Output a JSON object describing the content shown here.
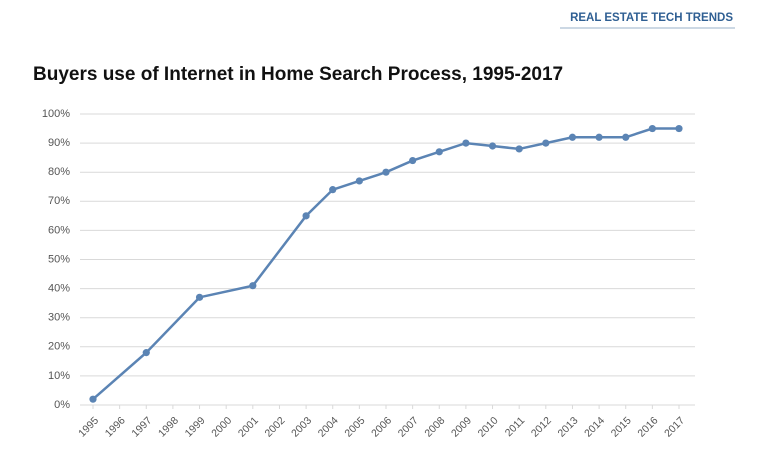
{
  "header": "REAL ESTATE TECH TRENDS",
  "chart_data": {
    "type": "line",
    "title": "Buyers use of Internet in Home Search Process, 1995-2017",
    "x": [
      1995,
      1997,
      1999,
      2001,
      2003,
      2004,
      2005,
      2006,
      2007,
      2008,
      2009,
      2010,
      2011,
      2012,
      2013,
      2014,
      2015,
      2016,
      2017
    ],
    "values": [
      2,
      18,
      37,
      41,
      65,
      74,
      77,
      80,
      84,
      87,
      90,
      89,
      88,
      90,
      92,
      92,
      92,
      95,
      95
    ],
    "color": "#5b84b4",
    "xlim": [
      1995,
      2017
    ],
    "xticks": [
      1995,
      1996,
      1997,
      1998,
      1999,
      2000,
      2001,
      2002,
      2003,
      2004,
      2005,
      2006,
      2007,
      2008,
      2009,
      2010,
      2011,
      2012,
      2013,
      2014,
      2015,
      2016,
      2017
    ],
    "ylim": [
      0,
      100
    ],
    "yticks": [
      {
        "value": 0,
        "label": "0%"
      },
      {
        "value": 10,
        "label": "10%"
      },
      {
        "value": 20,
        "label": "20%"
      },
      {
        "value": 30,
        "label": "30%"
      },
      {
        "value": 40,
        "label": "40%"
      },
      {
        "value": 50,
        "label": "50%"
      },
      {
        "value": 60,
        "label": "60%"
      },
      {
        "value": 70,
        "label": "70%"
      },
      {
        "value": 80,
        "label": "80%"
      },
      {
        "value": 90,
        "label": "90%"
      },
      {
        "value": 100,
        "label": "100%"
      }
    ],
    "grid": true
  }
}
